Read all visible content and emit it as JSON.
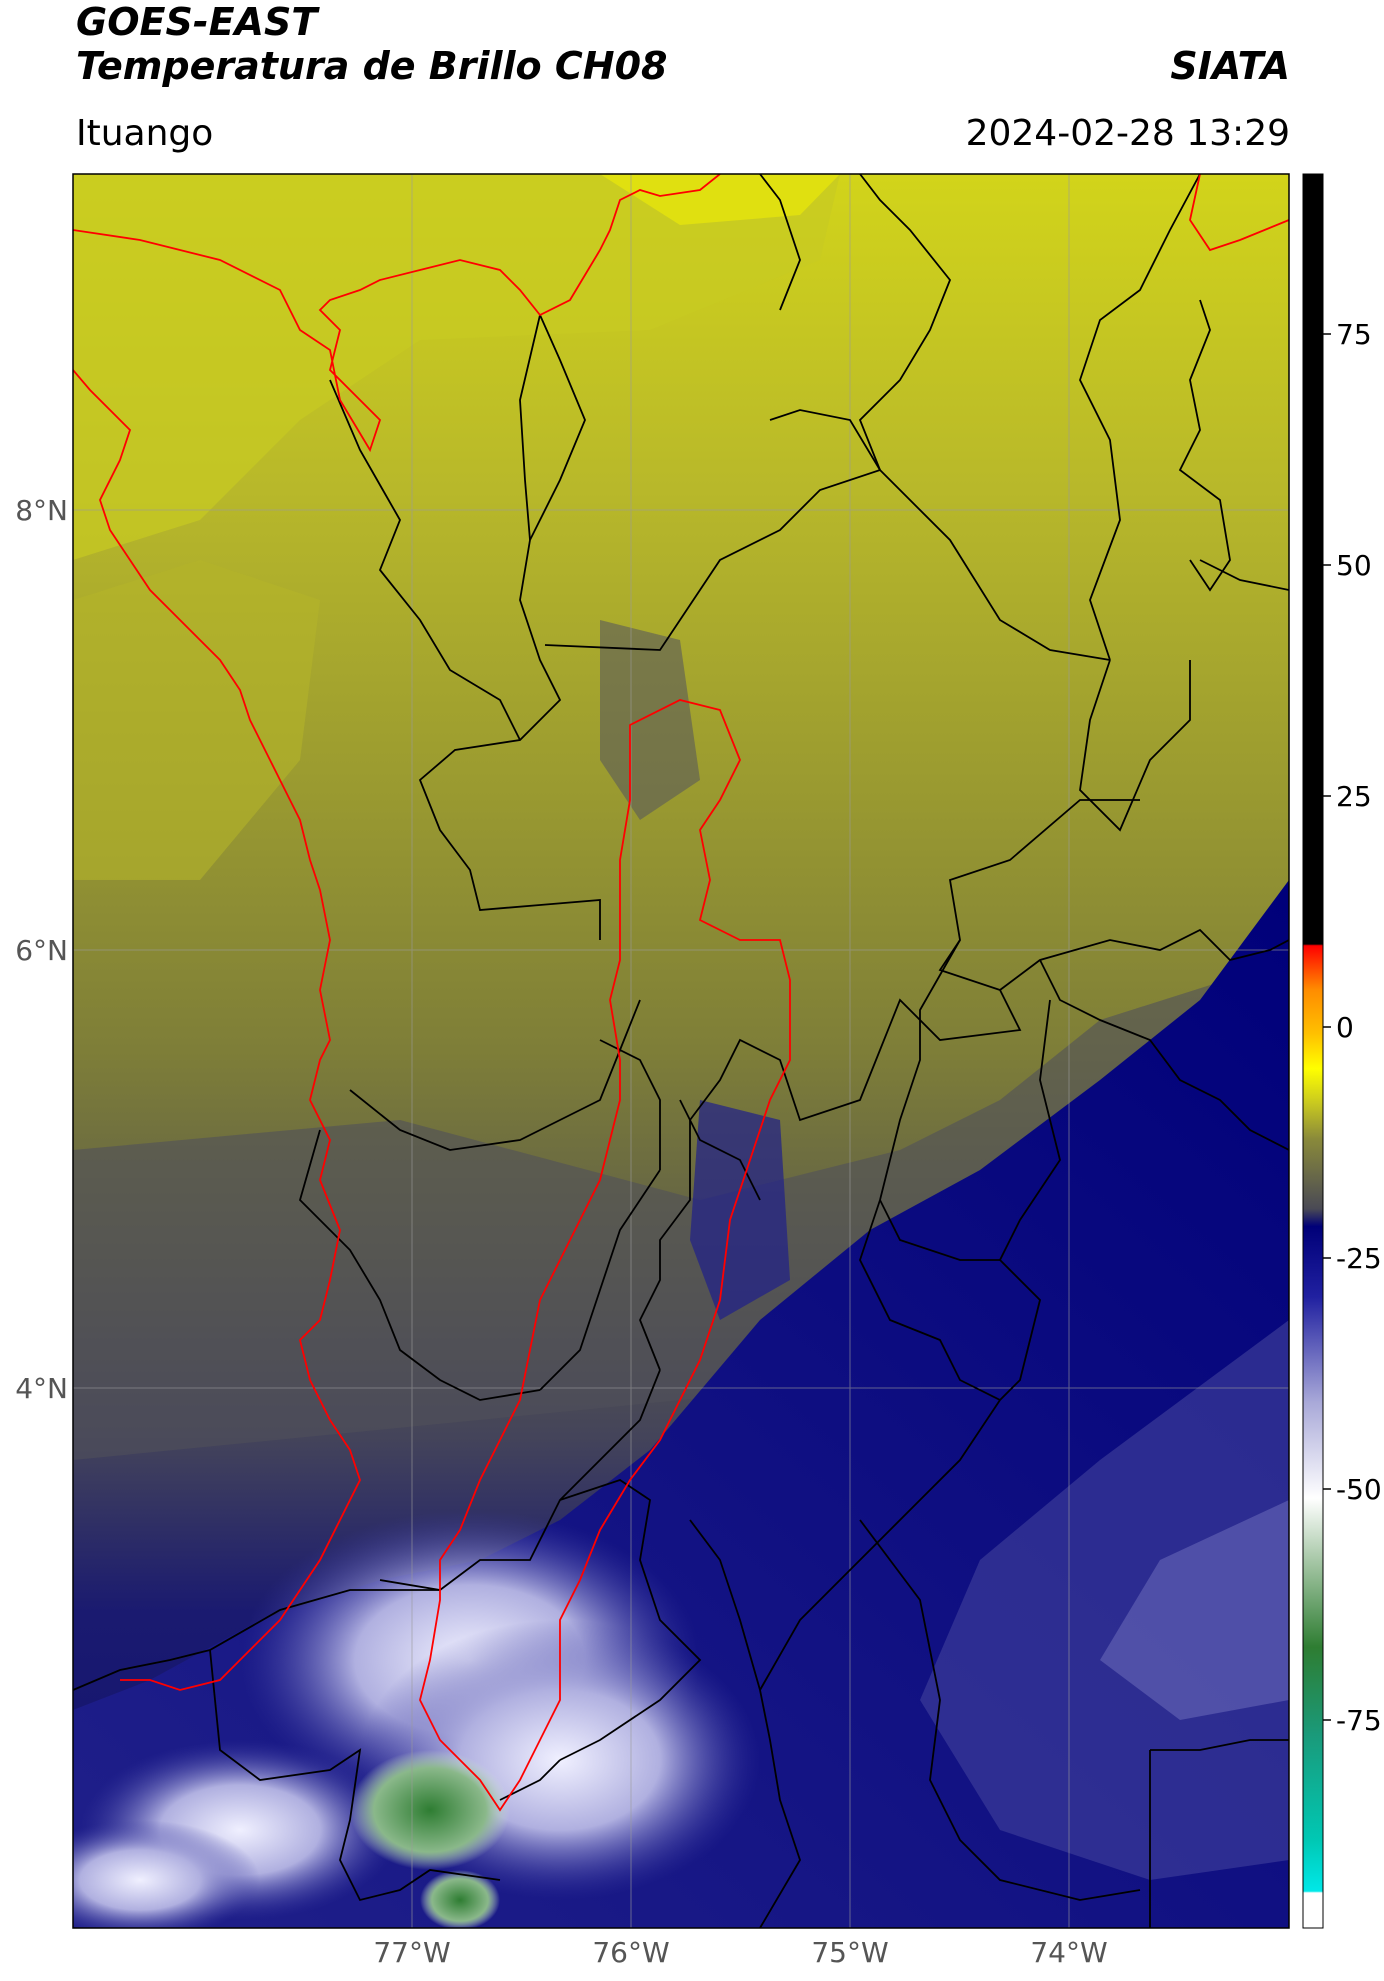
{
  "header": {
    "satellite": "GOES-EAST",
    "product": "Temperatura de Brillo CH08",
    "brand": "SIATA",
    "region": "Ituango",
    "timestamp": "2024-02-28 13:29"
  },
  "map": {
    "lat_labels": [
      "8°N",
      "6°N",
      "4°N"
    ],
    "lon_labels": [
      "77°W",
      "76°W",
      "75°W",
      "74°W"
    ]
  },
  "colorbar": {
    "tick_labels": [
      "75",
      "50",
      "25",
      "0",
      "-25",
      "-50",
      "-75"
    ],
    "colors": {
      "black": "#000000",
      "red": "#ff0000",
      "orange": "#ff8c00",
      "yellow": "#ffff00",
      "olive": "#8a8a3a",
      "gray": "#4a4a55",
      "navy": "#000078",
      "lavender": "#a8a8d8",
      "white": "#ffffff",
      "green": "#2e7d32",
      "teal": "#00c8b4",
      "cyan": "#00e8e8"
    }
  }
}
